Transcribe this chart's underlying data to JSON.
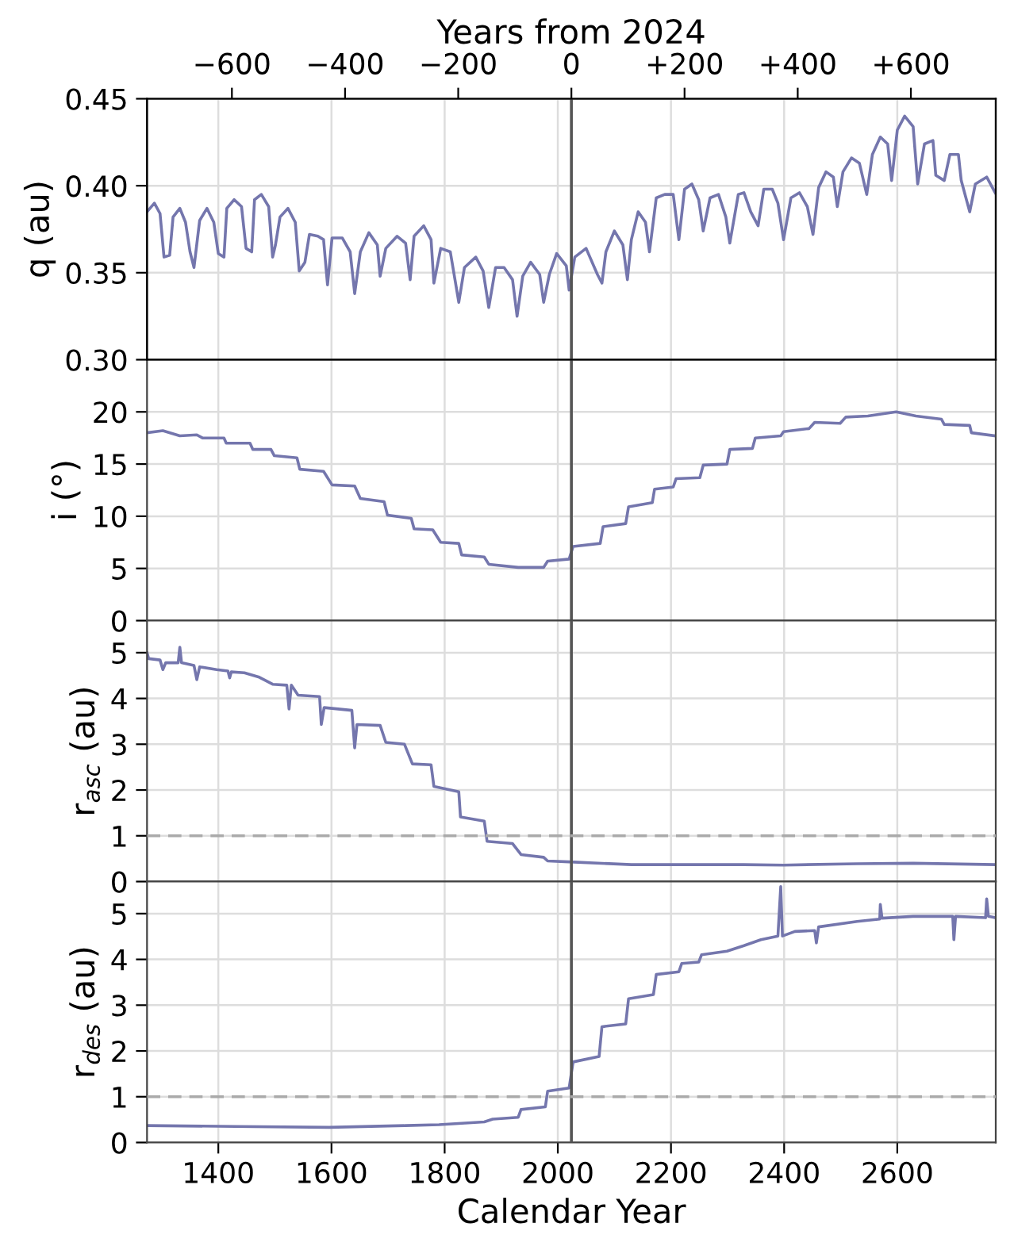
{
  "chart_data": [
    {
      "type": "line",
      "ylabel": "q (au)",
      "x2label": "Years from 2024",
      "xlim": [
        1274,
        2774
      ],
      "xticks": [
        1400,
        1600,
        1800,
        2000,
        2200,
        2400,
        2600
      ],
      "x2lim": [
        -750,
        750
      ],
      "x2ticks": [
        {
          "value": -600,
          "label": "−600"
        },
        {
          "value": -400,
          "label": "−400"
        },
        {
          "value": -200,
          "label": "−200"
        },
        0,
        {
          "value": 200,
          "label": "+200"
        },
        {
          "value": 400,
          "label": "+400"
        },
        {
          "value": 600,
          "label": "+600"
        }
      ],
      "ylim": [
        0.3,
        0.45
      ],
      "yticks": [
        {
          "value": 0.3,
          "label": "0.30"
        },
        0.35,
        {
          "value": 0.4,
          "label": "0.40"
        },
        0.45
      ],
      "tick_labels": "y",
      "grid": true,
      "ref_lines": [
        {
          "axis": "x",
          "value": 2024,
          "color": "#555555"
        }
      ],
      "series": [
        {
          "color": "#7476ad",
          "x": [
            1274,
            1287,
            1297,
            1304,
            1314,
            1320,
            1332,
            1342,
            1350,
            1357,
            1367,
            1380,
            1392,
            1400,
            1410,
            1415,
            1428,
            1441,
            1449,
            1459,
            1464,
            1476,
            1489,
            1496,
            1501,
            1509,
            1523,
            1536,
            1543,
            1553,
            1561,
            1576,
            1586,
            1593,
            1601,
            1619,
            1633,
            1641,
            1651,
            1666,
            1681,
            1686,
            1696,
            1716,
            1731,
            1739,
            1746,
            1763,
            1776,
            1781,
            1793,
            1810,
            1825,
            1835,
            1855,
            1868,
            1878,
            1890,
            1905,
            1920,
            1928,
            1938,
            1952,
            1968,
            1975,
            1985,
            1998,
            2015,
            2020,
            2030,
            2050,
            2070,
            2078,
            2085,
            2100,
            2115,
            2123,
            2130,
            2142,
            2155,
            2162,
            2174,
            2189,
            2204,
            2214,
            2224,
            2237,
            2249,
            2257,
            2269,
            2284,
            2297,
            2304,
            2319,
            2329,
            2341,
            2354,
            2364,
            2379,
            2389,
            2399,
            2412,
            2427,
            2441,
            2451,
            2461,
            2474,
            2487,
            2494,
            2504,
            2519,
            2533,
            2546,
            2556,
            2570,
            2583,
            2590,
            2600,
            2613,
            2628,
            2636,
            2648,
            2663,
            2668,
            2683,
            2693,
            2708,
            2713,
            2728,
            2738,
            2758,
            2773
          ],
          "values": [
            0.385,
            0.39,
            0.384,
            0.359,
            0.36,
            0.382,
            0.387,
            0.379,
            0.362,
            0.353,
            0.38,
            0.387,
            0.379,
            0.361,
            0.359,
            0.387,
            0.392,
            0.388,
            0.364,
            0.362,
            0.392,
            0.395,
            0.388,
            0.359,
            0.366,
            0.382,
            0.387,
            0.379,
            0.351,
            0.356,
            0.372,
            0.371,
            0.369,
            0.343,
            0.37,
            0.37,
            0.362,
            0.338,
            0.362,
            0.373,
            0.366,
            0.348,
            0.364,
            0.371,
            0.367,
            0.346,
            0.371,
            0.377,
            0.369,
            0.344,
            0.364,
            0.362,
            0.333,
            0.353,
            0.359,
            0.351,
            0.33,
            0.353,
            0.353,
            0.346,
            0.325,
            0.348,
            0.356,
            0.349,
            0.333,
            0.349,
            0.361,
            0.354,
            0.34,
            0.359,
            0.364,
            0.349,
            0.344,
            0.362,
            0.374,
            0.366,
            0.346,
            0.369,
            0.385,
            0.379,
            0.362,
            0.393,
            0.395,
            0.395,
            0.369,
            0.398,
            0.401,
            0.392,
            0.374,
            0.393,
            0.395,
            0.382,
            0.367,
            0.395,
            0.396,
            0.385,
            0.377,
            0.398,
            0.398,
            0.39,
            0.369,
            0.393,
            0.396,
            0.388,
            0.372,
            0.399,
            0.408,
            0.405,
            0.388,
            0.408,
            0.416,
            0.413,
            0.395,
            0.418,
            0.428,
            0.424,
            0.403,
            0.432,
            0.44,
            0.434,
            0.401,
            0.424,
            0.426,
            0.406,
            0.403,
            0.418,
            0.418,
            0.403,
            0.385,
            0.401,
            0.405,
            0.396
          ]
        }
      ]
    },
    {
      "type": "line",
      "ylabel": "i (°)",
      "xlim": [
        1274,
        2774
      ],
      "xticks": [
        1400,
        1600,
        1800,
        2000,
        2200,
        2400,
        2600
      ],
      "ylim": [
        0,
        25
      ],
      "yticks": [
        0,
        5,
        10,
        15,
        20
      ],
      "tick_labels": "y",
      "grid": true,
      "ref_lines": [
        {
          "axis": "x",
          "value": 2024,
          "color": "#555555"
        }
      ],
      "series": [
        {
          "color": "#7476ad",
          "x": [
            1274,
            1302,
            1332,
            1362,
            1372,
            1410,
            1414,
            1456,
            1461,
            1493,
            1499,
            1539,
            1544,
            1586,
            1601,
            1641,
            1651,
            1693,
            1699,
            1741,
            1746,
            1779,
            1793,
            1825,
            1830,
            1870,
            1878,
            1930,
            1975,
            1982,
            2020,
            2027,
            2075,
            2080,
            2120,
            2125,
            2167,
            2171,
            2204,
            2209,
            2251,
            2257,
            2299,
            2304,
            2344,
            2349,
            2394,
            2399,
            2444,
            2454,
            2499,
            2509,
            2548,
            2598,
            2633,
            2678,
            2683,
            2728,
            2731,
            2773
          ],
          "values": [
            18.0,
            18.2,
            17.7,
            17.8,
            17.5,
            17.5,
            17.0,
            17.0,
            16.4,
            16.4,
            15.8,
            15.6,
            14.5,
            14.3,
            13.0,
            12.9,
            11.7,
            11.4,
            10.1,
            9.8,
            8.8,
            8.7,
            7.5,
            7.4,
            6.3,
            6.1,
            5.4,
            5.1,
            5.1,
            5.7,
            5.9,
            7.1,
            7.4,
            9.0,
            9.3,
            10.9,
            11.3,
            12.6,
            12.8,
            13.6,
            13.7,
            14.9,
            15.0,
            16.4,
            16.5,
            17.5,
            17.7,
            18.1,
            18.4,
            19.0,
            18.9,
            19.5,
            19.6,
            20.0,
            19.6,
            19.3,
            18.8,
            18.7,
            18.0,
            17.7
          ]
        }
      ]
    },
    {
      "type": "line",
      "ylabel": "r$_{asc}$ (au)",
      "xlim": [
        1274,
        2774
      ],
      "xticks": [
        1400,
        1600,
        1800,
        2000,
        2200,
        2400,
        2600
      ],
      "ylim": [
        0,
        5.7
      ],
      "yticks": [
        0,
        1,
        2,
        3,
        4,
        5
      ],
      "tick_labels": "y",
      "grid": true,
      "ref_lines": [
        {
          "axis": "x",
          "value": 2024,
          "color": "#555555"
        },
        {
          "axis": "y",
          "value": 1,
          "color": "#aaaaaa",
          "line_style": "dashed"
        }
      ],
      "series": [
        {
          "color": "#7476ad",
          "x": [
            1274,
            1277,
            1297,
            1302,
            1307,
            1329,
            1332,
            1335,
            1357,
            1362,
            1367,
            1397,
            1417,
            1420,
            1423,
            1446,
            1471,
            1496,
            1521,
            1525,
            1529,
            1541,
            1579,
            1582,
            1587,
            1636,
            1641,
            1645,
            1686,
            1696,
            1729,
            1743,
            1776,
            1781,
            1825,
            1828,
            1870,
            1875,
            1920,
            1935,
            1975,
            1982,
            2020,
            2130,
            2329,
            2399,
            2529,
            2628,
            2773
          ],
          "values": [
            5.0,
            4.87,
            4.84,
            4.63,
            4.78,
            4.78,
            5.12,
            4.78,
            4.72,
            4.41,
            4.69,
            4.63,
            4.6,
            4.45,
            4.58,
            4.56,
            4.47,
            4.31,
            4.29,
            3.77,
            4.29,
            4.07,
            4.04,
            3.43,
            3.8,
            3.74,
            2.92,
            3.43,
            3.41,
            3.04,
            3.0,
            2.57,
            2.55,
            2.08,
            1.96,
            1.41,
            1.32,
            0.88,
            0.83,
            0.59,
            0.53,
            0.45,
            0.43,
            0.37,
            0.37,
            0.36,
            0.39,
            0.4,
            0.37
          ]
        }
      ]
    },
    {
      "type": "line",
      "ylabel": "r$_{des}$ (au)",
      "xlabel": "Calendar Year",
      "xlim": [
        1274,
        2774
      ],
      "xticks": [
        1400,
        1600,
        1800,
        2000,
        2200,
        2400,
        2600
      ],
      "ylim": [
        0,
        5.7
      ],
      "yticks": [
        0,
        1,
        2,
        3,
        4,
        5
      ],
      "grid": true,
      "ref_lines": [
        {
          "axis": "x",
          "value": 2024,
          "color": "#555555"
        },
        {
          "axis": "y",
          "value": 1,
          "color": "#aaaaaa",
          "line_style": "dashed"
        }
      ],
      "series": [
        {
          "color": "#7476ad",
          "x": [
            1274,
            1431,
            1596,
            1731,
            1790,
            1870,
            1885,
            1930,
            1935,
            1978,
            1982,
            2020,
            2027,
            2073,
            2078,
            2120,
            2125,
            2169,
            2174,
            2214,
            2219,
            2249,
            2254,
            2299,
            2329,
            2359,
            2389,
            2394,
            2397,
            2419,
            2454,
            2457,
            2461,
            2529,
            2569,
            2570,
            2573,
            2628,
            2698,
            2700,
            2703,
            2756,
            2758,
            2761,
            2773
          ],
          "values": [
            0.37,
            0.35,
            0.33,
            0.37,
            0.39,
            0.45,
            0.51,
            0.55,
            0.72,
            0.78,
            1.12,
            1.19,
            1.76,
            1.88,
            2.53,
            2.59,
            3.14,
            3.23,
            3.67,
            3.73,
            3.91,
            3.94,
            4.1,
            4.18,
            4.3,
            4.43,
            4.51,
            5.59,
            4.51,
            4.61,
            4.63,
            4.36,
            4.71,
            4.83,
            4.88,
            5.2,
            4.9,
            4.94,
            4.94,
            4.43,
            4.94,
            4.91,
            5.32,
            4.94,
            4.91
          ]
        }
      ]
    }
  ]
}
